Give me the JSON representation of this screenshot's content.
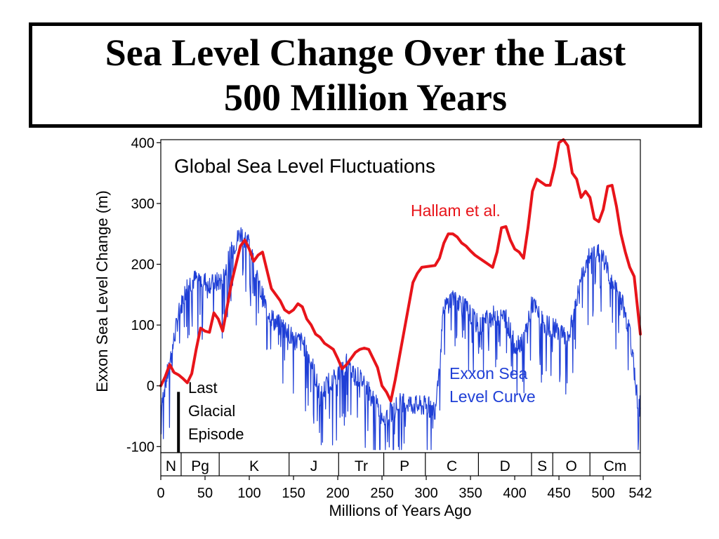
{
  "slide": {
    "title_line1": "Sea Level Change Over the Last",
    "title_line2": "500 Million Years"
  },
  "chart_data": {
    "type": "line",
    "title": "Global Sea Level Fluctuations",
    "xlabel": "Millions of Years Ago",
    "ylabel": "Exxon Sea Level Change (m)",
    "xlim": [
      0,
      542
    ],
    "ylim": [
      -110,
      405
    ],
    "x_ticks": [
      0,
      50,
      100,
      150,
      200,
      250,
      300,
      350,
      400,
      450,
      500,
      542
    ],
    "y_ticks": [
      -100,
      0,
      100,
      200,
      300,
      400
    ],
    "series": [
      {
        "name": "Hallam et al.",
        "color": "#e8141a",
        "x": [
          0,
          5,
          10,
          15,
          20,
          25,
          30,
          35,
          40,
          45,
          50,
          55,
          60,
          65,
          70,
          75,
          80,
          85,
          90,
          95,
          100,
          105,
          110,
          115,
          120,
          125,
          130,
          135,
          140,
          145,
          150,
          155,
          160,
          165,
          170,
          175,
          180,
          185,
          190,
          195,
          200,
          205,
          210,
          215,
          220,
          225,
          230,
          235,
          240,
          245,
          250,
          255,
          260,
          265,
          270,
          275,
          280,
          285,
          290,
          295,
          300,
          305,
          310,
          315,
          320,
          325,
          330,
          335,
          340,
          345,
          350,
          355,
          360,
          365,
          370,
          375,
          380,
          385,
          390,
          395,
          400,
          405,
          410,
          415,
          420,
          425,
          430,
          435,
          440,
          445,
          450,
          455,
          460,
          465,
          470,
          475,
          480,
          485,
          490,
          495,
          500,
          505,
          510,
          515,
          520,
          525,
          530,
          535,
          542
        ],
        "values": [
          0,
          15,
          35,
          22,
          18,
          12,
          5,
          20,
          60,
          95,
          90,
          88,
          120,
          110,
          90,
          130,
          170,
          200,
          230,
          240,
          225,
          205,
          215,
          220,
          190,
          160,
          150,
          140,
          125,
          120,
          125,
          135,
          130,
          110,
          100,
          85,
          80,
          70,
          65,
          60,
          45,
          28,
          35,
          45,
          55,
          60,
          62,
          60,
          45,
          30,
          0,
          -10,
          -25,
          10,
          50,
          90,
          130,
          170,
          185,
          195,
          196,
          197,
          198,
          210,
          235,
          250,
          250,
          245,
          235,
          230,
          222,
          215,
          210,
          205,
          200,
          195,
          220,
          260,
          262,
          240,
          225,
          220,
          210,
          260,
          320,
          340,
          335,
          330,
          330,
          360,
          400,
          405,
          395,
          350,
          340,
          310,
          320,
          310,
          275,
          270,
          290,
          328,
          330,
          295,
          250,
          220,
          195,
          180,
          85
        ]
      },
      {
        "name": "Exxon Sea Level Curve",
        "color": "#1f3fd6",
        "x": [
          0,
          10,
          20,
          30,
          40,
          50,
          60,
          70,
          80,
          90,
          100,
          110,
          120,
          130,
          140,
          150,
          160,
          170,
          180,
          190,
          200,
          210,
          220,
          230,
          240,
          250,
          260,
          270,
          280,
          290,
          300,
          310,
          320,
          330,
          340,
          350,
          360,
          370,
          380,
          390,
          400,
          410,
          420,
          430,
          440,
          450,
          460,
          470,
          480,
          490,
          500,
          510,
          520,
          530,
          540
        ],
        "values": [
          -30,
          40,
          120,
          170,
          180,
          175,
          170,
          180,
          225,
          255,
          240,
          170,
          130,
          105,
          100,
          80,
          75,
          45,
          -15,
          10,
          20,
          40,
          20,
          10,
          -20,
          -45,
          -40,
          -25,
          -25,
          -30,
          -30,
          -35,
          130,
          150,
          140,
          120,
          100,
          115,
          120,
          115,
          70,
          80,
          140,
          110,
          100,
          95,
          75,
          145,
          205,
          225,
          215,
          170,
          150,
          90,
          -30
        ]
      }
    ],
    "annotations": [
      "Hallam et al.",
      "Exxon Sea",
      "Level Curve",
      "Last",
      "Glacial",
      "Episode"
    ],
    "periods": [
      {
        "label": "N",
        "start": 0,
        "end": 23
      },
      {
        "label": "Pg",
        "start": 23,
        "end": 66
      },
      {
        "label": "K",
        "start": 66,
        "end": 145
      },
      {
        "label": "J",
        "start": 145,
        "end": 201
      },
      {
        "label": "Tr",
        "start": 201,
        "end": 252
      },
      {
        "label": "P",
        "start": 252,
        "end": 299
      },
      {
        "label": "C",
        "start": 299,
        "end": 359
      },
      {
        "label": "D",
        "start": 359,
        "end": 419
      },
      {
        "label": "S",
        "start": 419,
        "end": 443
      },
      {
        "label": "O",
        "start": 443,
        "end": 485
      },
      {
        "label": "Cm",
        "start": 485,
        "end": 542
      }
    ],
    "glacial_episode": {
      "x": 20,
      "y_top": -10,
      "y_bottom": -120
    },
    "grid": false,
    "legend": "inline labels"
  }
}
